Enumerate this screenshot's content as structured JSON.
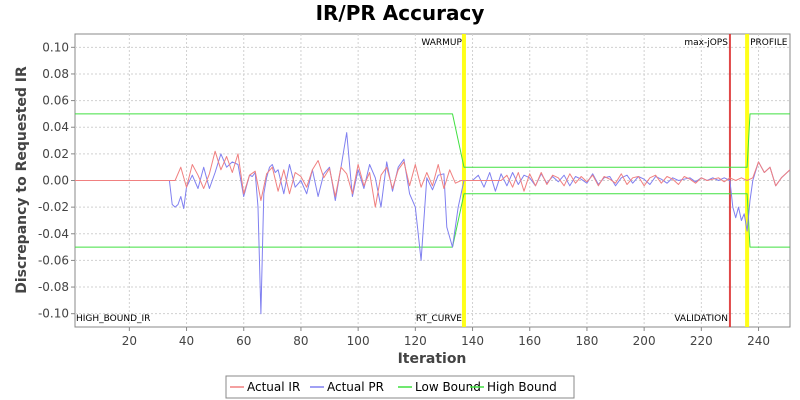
{
  "chart_data": {
    "type": "line",
    "title": "IR/PR Accuracy",
    "xlabel": "Iteration",
    "ylabel": "Discrepancy to Requested IR",
    "xlim": [
      1,
      251
    ],
    "ylim": [
      -0.11,
      0.11
    ],
    "x_ticks": [
      20,
      40,
      60,
      80,
      100,
      120,
      140,
      160,
      180,
      200,
      220,
      240
    ],
    "y_ticks": [
      -0.1,
      -0.08,
      -0.06,
      -0.04,
      -0.02,
      0.0,
      0.02,
      0.04,
      0.06,
      0.08,
      0.1
    ],
    "y_tick_labels": [
      "-0.10",
      "-0.08",
      "-0.06",
      "-0.04",
      "-0.02",
      "0.00",
      "0.02",
      "0.04",
      "0.06",
      "0.08",
      "0.10"
    ],
    "grid": true,
    "legend_position": "bottom",
    "colors": {
      "actual_ir": "#f08080",
      "actual_pr": "#8080f0",
      "low_bound": "#40e040",
      "high_bound": "#40e040",
      "marker_yellow": "#ffff00",
      "marker_red": "#dd3333"
    },
    "series": [
      {
        "name": "Actual IR",
        "x": [
          1,
          34,
          36,
          38,
          40,
          42,
          44,
          46,
          48,
          50,
          52,
          54,
          56,
          58,
          60,
          62,
          64,
          66,
          68,
          70,
          72,
          74,
          76,
          78,
          80,
          82,
          84,
          86,
          88,
          90,
          92,
          94,
          96,
          98,
          100,
          102,
          104,
          106,
          108,
          110,
          112,
          114,
          116,
          118,
          120,
          122,
          124,
          126,
          128,
          130,
          132,
          134,
          136,
          138,
          150,
          152,
          154,
          156,
          158,
          160,
          162,
          164,
          166,
          168,
          170,
          172,
          174,
          176,
          178,
          180,
          182,
          184,
          186,
          188,
          190,
          192,
          194,
          196,
          198,
          200,
          202,
          204,
          206,
          208,
          210,
          212,
          214,
          216,
          218,
          220,
          222,
          224,
          226,
          228,
          230,
          232,
          234,
          236,
          238,
          240,
          242,
          244,
          246,
          248,
          251
        ],
        "y": [
          0,
          0,
          0,
          0.01,
          -0.005,
          0.012,
          0.004,
          -0.006,
          0.005,
          0.022,
          0.008,
          0.018,
          0.006,
          0.02,
          -0.01,
          0.004,
          0.007,
          -0.015,
          0.005,
          0.01,
          -0.008,
          0.008,
          -0.01,
          0.006,
          0.003,
          -0.005,
          0.008,
          0.015,
          0.002,
          0.009,
          -0.012,
          0.01,
          0.005,
          -0.01,
          0.012,
          -0.004,
          0.006,
          -0.02,
          0.004,
          0.01,
          -0.006,
          0.008,
          0.014,
          -0.004,
          0.012,
          -0.005,
          0.006,
          -0.004,
          0.012,
          -0.006,
          0.008,
          -0.002,
          0,
          0,
          0,
          0.004,
          -0.005,
          0.006,
          -0.008,
          0.005,
          -0.004,
          0.006,
          -0.003,
          0.004,
          0.002,
          -0.004,
          0.005,
          -0.002,
          0.003,
          -0.001,
          0.004,
          -0.004,
          0.003,
          0.001,
          -0.002,
          0.005,
          -0.003,
          0.002,
          0.003,
          -0.004,
          0.002,
          0.004,
          -0.002,
          0.003,
          0.001,
          -0.003,
          0.003,
          0.001,
          -0.002,
          0.002,
          0,
          0.001,
          0.002,
          -0.001,
          0.002,
          0,
          0.002,
          0,
          0.002,
          0.014,
          0.006,
          0.01,
          -0.004,
          0.002,
          0.008
        ]
      },
      {
        "name": "Actual PR",
        "x": [
          34,
          35,
          36,
          37,
          38,
          39,
          40,
          42,
          44,
          46,
          48,
          50,
          52,
          54,
          56,
          58,
          60,
          62,
          63,
          64,
          65,
          66,
          67,
          68,
          69,
          70,
          71,
          72,
          74,
          76,
          78,
          80,
          82,
          84,
          86,
          88,
          90,
          92,
          94,
          96,
          98,
          100,
          102,
          104,
          106,
          108,
          110,
          112,
          114,
          116,
          118,
          120,
          122,
          124,
          126,
          128,
          130,
          131,
          133,
          135,
          137,
          140,
          142,
          144,
          146,
          148,
          150,
          152,
          154,
          156,
          158,
          160,
          162,
          164,
          166,
          168,
          170,
          172,
          174,
          176,
          178,
          180,
          182,
          184,
          186,
          188,
          190,
          192,
          194,
          196,
          198,
          200,
          202,
          204,
          206,
          208,
          210,
          212,
          214,
          216,
          218,
          220,
          222,
          224,
          226,
          228,
          230,
          231,
          232,
          233,
          234,
          235,
          236,
          237,
          238,
          240,
          242,
          244,
          246,
          248,
          251
        ],
        "y": [
          0,
          -0.018,
          -0.02,
          -0.018,
          -0.012,
          -0.021,
          -0.005,
          0.004,
          -0.006,
          0.01,
          -0.006,
          0.006,
          0.02,
          0.01,
          0.014,
          0.012,
          -0.012,
          0.004,
          0.003,
          0.006,
          -0.02,
          -0.1,
          -0.01,
          0.002,
          0.01,
          0.012,
          0.006,
          0.008,
          -0.01,
          0.012,
          -0.005,
          0,
          -0.01,
          0.008,
          -0.012,
          0.005,
          0.01,
          -0.015,
          0.01,
          0.036,
          -0.012,
          0.008,
          -0.006,
          0.012,
          0.002,
          -0.02,
          0.014,
          -0.008,
          0.01,
          0.016,
          -0.01,
          -0.02,
          -0.06,
          0.002,
          -0.007,
          0.004,
          0.005,
          -0.035,
          -0.05,
          -0.02,
          0,
          0,
          0.004,
          -0.005,
          0.006,
          -0.008,
          0.005,
          -0.004,
          0.006,
          -0.003,
          0.004,
          0.002,
          -0.004,
          0.005,
          -0.002,
          0.003,
          -0.001,
          0.004,
          -0.004,
          0.003,
          0.001,
          -0.002,
          0.005,
          -0.003,
          0.002,
          0.003,
          -0.004,
          0.002,
          0.004,
          -0.002,
          0.003,
          0.001,
          -0.003,
          0.003,
          0.001,
          -0.002,
          0.002,
          0,
          0.001,
          0.002,
          -0.001,
          0.002,
          0,
          0.002,
          0,
          0.002,
          0,
          -0.02,
          -0.028,
          -0.02,
          -0.03,
          -0.025,
          -0.038,
          -0.015,
          0,
          0.014,
          0.006,
          0.01,
          -0.004,
          0.002,
          0.008
        ]
      },
      {
        "name": "Low Bound",
        "x": [
          1,
          133,
          137,
          236,
          237,
          251
        ],
        "y": [
          -0.05,
          -0.05,
          -0.01,
          -0.01,
          -0.05,
          -0.05
        ]
      },
      {
        "name": "High Bound",
        "x": [
          1,
          133,
          137,
          236,
          237,
          251
        ],
        "y": [
          0.05,
          0.05,
          0.01,
          0.01,
          0.05,
          0.05
        ]
      }
    ],
    "markers": [
      {
        "label_top": "WARMUP",
        "label_bottom": "",
        "x": 137,
        "color": "#ffff00"
      },
      {
        "label_top": "max-jOPS",
        "label_bottom": "VALIDATION",
        "x": 230,
        "color": "#dd3333"
      },
      {
        "label_top": "PROFILE",
        "label_bottom": "",
        "x": 236,
        "color": "#ffff00"
      },
      {
        "label_top": "",
        "label_bottom": "RT_CURVE",
        "x": 137,
        "color": "#ffff00"
      },
      {
        "label_top": "",
        "label_bottom": "HIGH_BOUND_IR",
        "x": 1,
        "color": "#ffff00"
      }
    ],
    "legend": [
      "Actual IR",
      "Actual PR",
      "Low Bound",
      "High Bound"
    ]
  }
}
